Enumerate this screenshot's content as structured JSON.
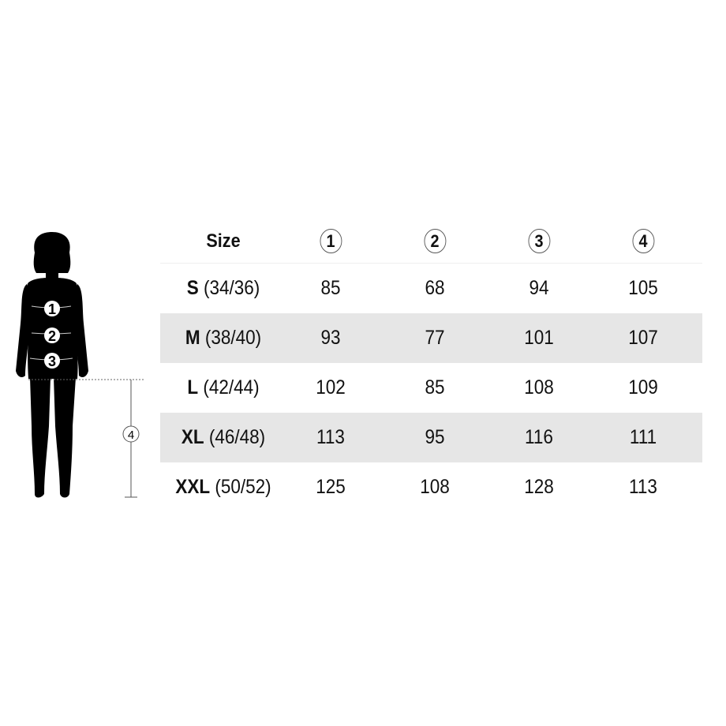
{
  "header": {
    "size_label": "Size",
    "columns": [
      "1",
      "2",
      "3",
      "4"
    ]
  },
  "figure": {
    "markers": [
      "1",
      "2",
      "3",
      "4"
    ]
  },
  "rows": [
    {
      "size": "S",
      "eu": "(34/36)",
      "values": [
        "85",
        "68",
        "94",
        "105"
      ]
    },
    {
      "size": "M",
      "eu": "(38/40)",
      "values": [
        "93",
        "77",
        "101",
        "107"
      ]
    },
    {
      "size": "L",
      "eu": "(42/44)",
      "values": [
        "102",
        "85",
        "108",
        "109"
      ]
    },
    {
      "size": "XL",
      "eu": "(46/48)",
      "values": [
        "113",
        "95",
        "116",
        "111"
      ]
    },
    {
      "size": "XXL",
      "eu": "(50/52)",
      "values": [
        "125",
        "108",
        "128",
        "113"
      ]
    }
  ],
  "colors": {
    "shaded_row": "#e6e6e6",
    "silhouette": "#000000"
  }
}
